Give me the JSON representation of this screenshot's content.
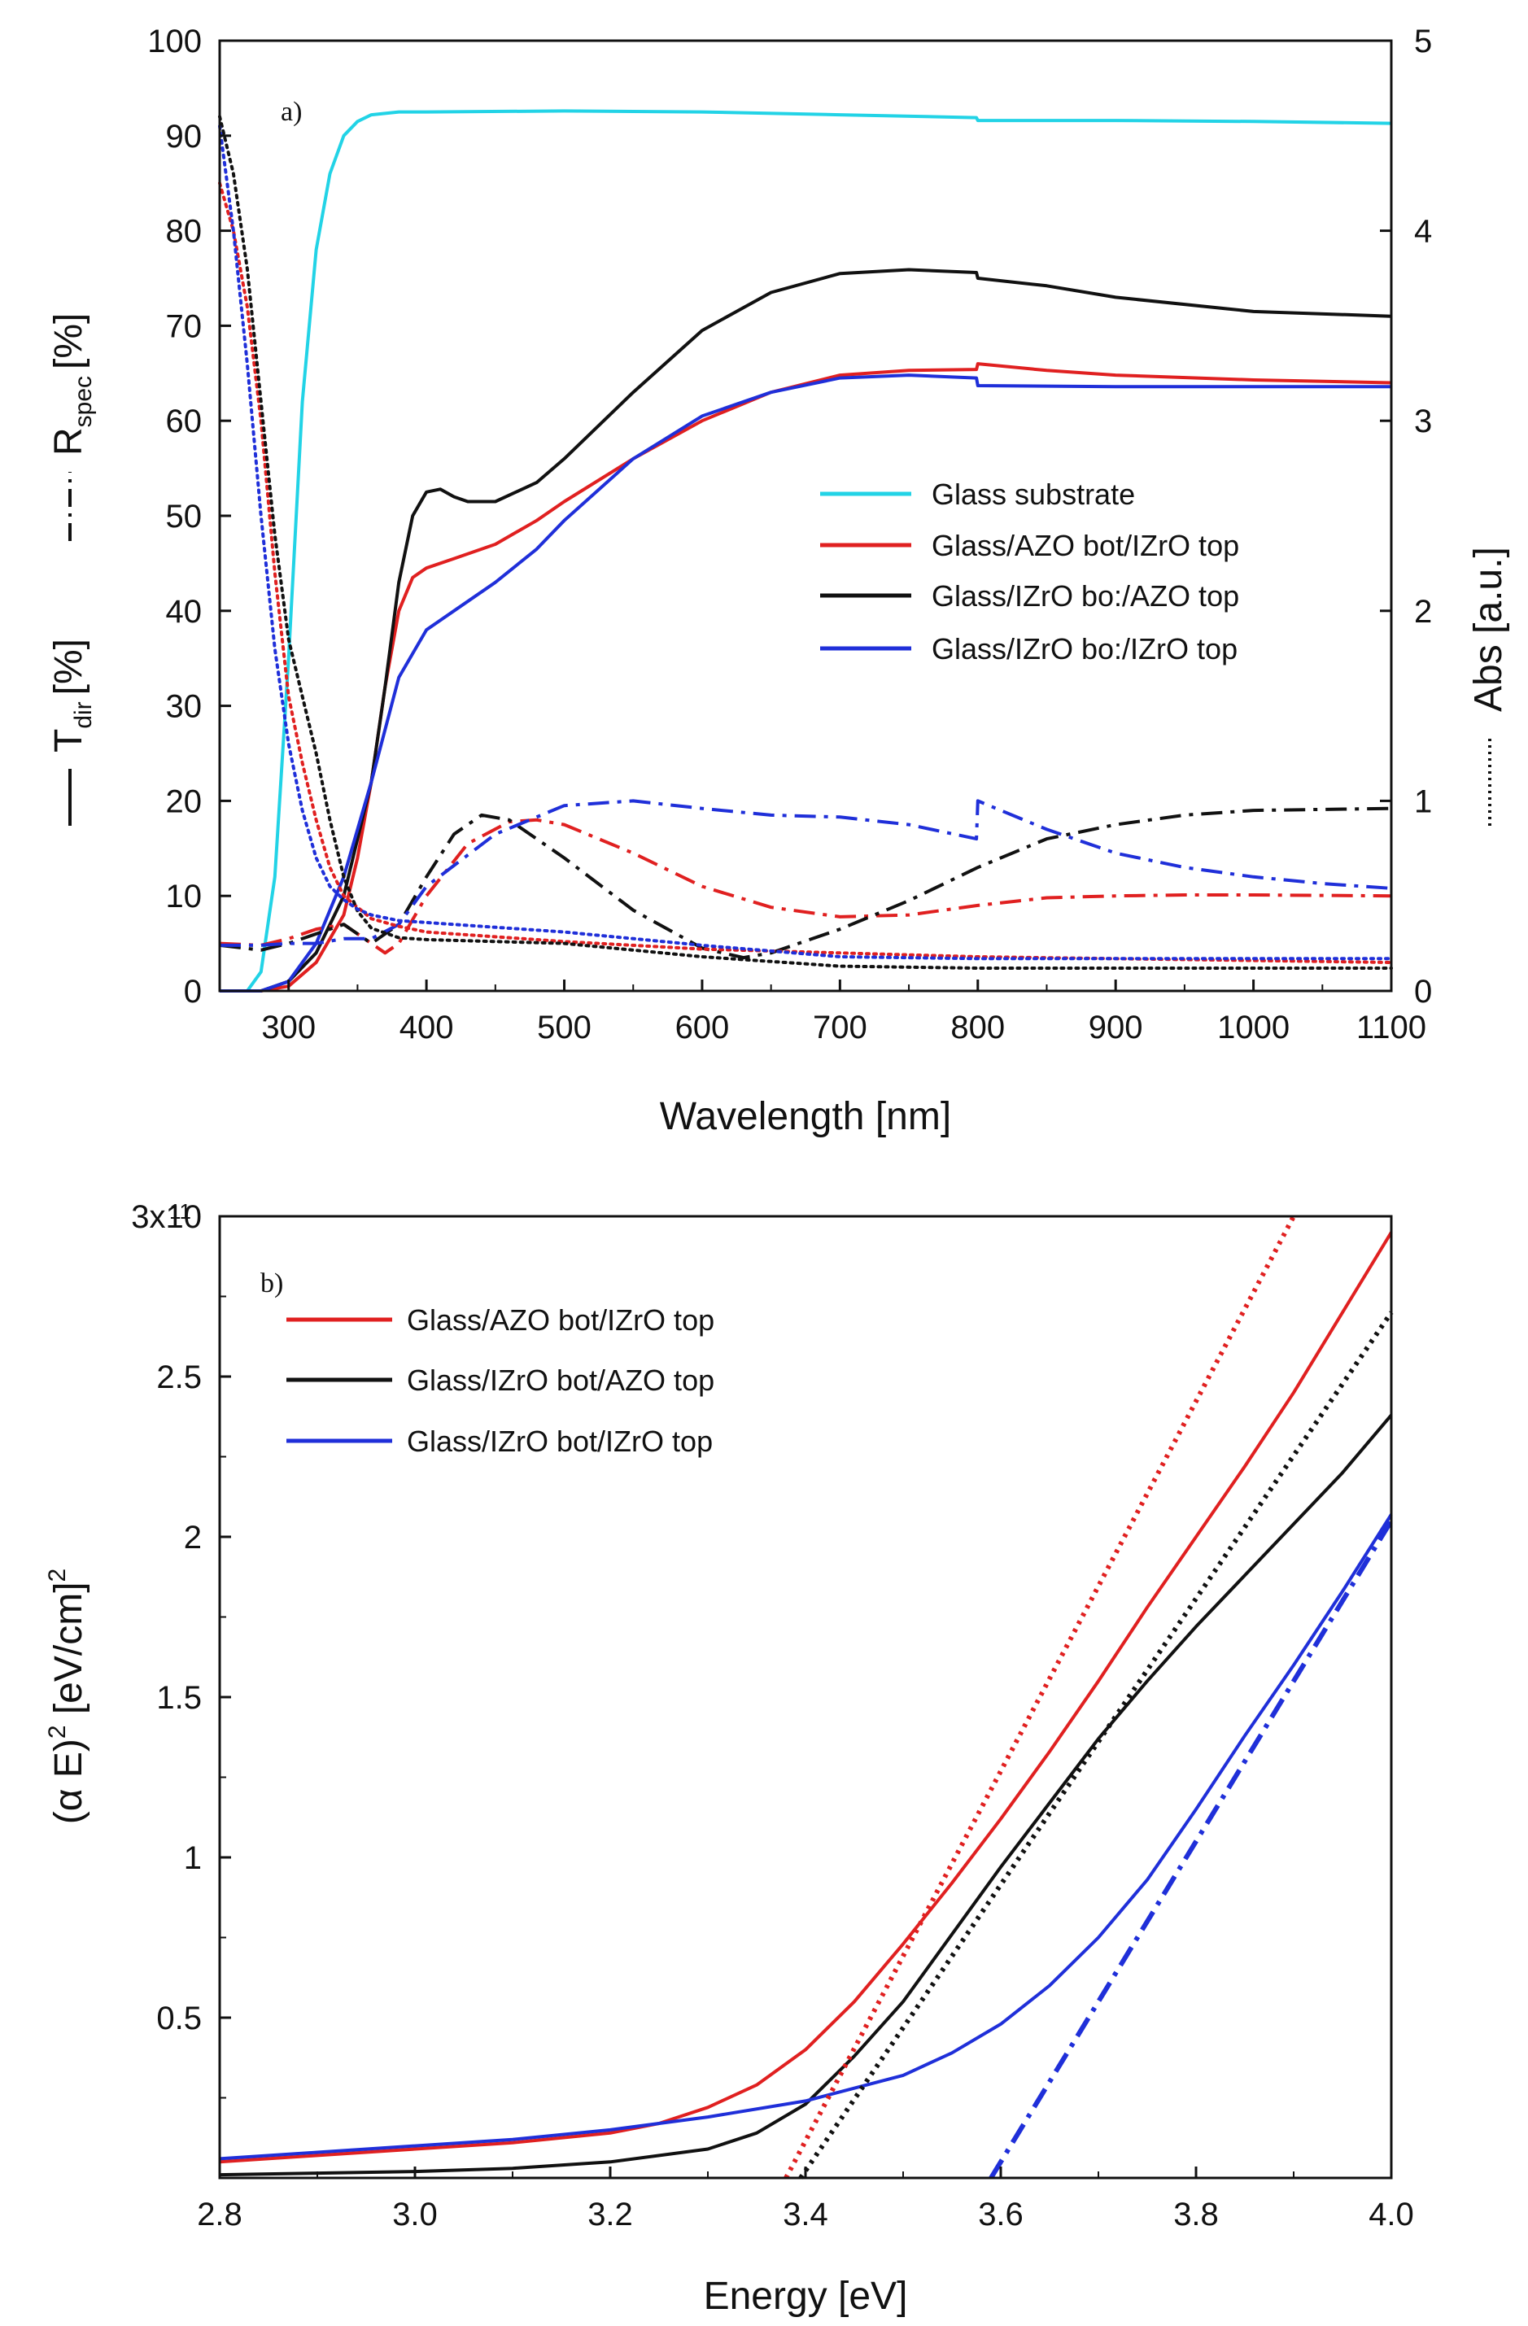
{
  "chart_data": [
    {
      "type": "line",
      "panel_label": "a)",
      "xlabel": "Wavelength [nm]",
      "ylabel_left": {
        "t_symbol": "T",
        "t_sub": "dir",
        "t_unit": "[%]",
        "r_symbol": "R",
        "r_sub": "spec",
        "r_unit": "[%]"
      },
      "ylabel_right": "Abs [a.u.]",
      "xlim": [
        250,
        1100
      ],
      "ylim_left": [
        0,
        100
      ],
      "ylim_right": [
        0,
        5
      ],
      "xticks": [
        300,
        400,
        500,
        600,
        700,
        800,
        900,
        1000,
        1100
      ],
      "yticks_left": [
        0,
        10,
        20,
        30,
        40,
        50,
        60,
        70,
        80,
        90,
        100
      ],
      "yticks_right": [
        0,
        1,
        2,
        3,
        4,
        5
      ],
      "legend_position": "center-right",
      "legend": [
        "Glass substrate",
        "Glass/AZO bot/IZrO top",
        "Glass/IZrO bo:/AZO top",
        "Glass/IZrO bo:/IZrO top"
      ],
      "series": [
        {
          "name": "Glass substrate",
          "quantity": "T_dir",
          "style": "solid",
          "color": "#22d3e6",
          "x": [
            250,
            270,
            280,
            290,
            300,
            310,
            320,
            330,
            340,
            350,
            360,
            380,
            400,
            500,
            600,
            700,
            799,
            800,
            900,
            1000,
            1100
          ],
          "y": [
            0,
            0,
            2,
            12,
            35,
            62,
            78,
            86,
            90,
            91.5,
            92.2,
            92.5,
            92.5,
            92.6,
            92.5,
            92.2,
            91.9,
            91.6,
            91.6,
            91.5,
            91.3
          ]
        },
        {
          "name": "Glass/AZO bot/IZrO top",
          "quantity": "T_dir",
          "style": "solid",
          "color": "#e02020",
          "x": [
            250,
            280,
            300,
            320,
            340,
            350,
            360,
            370,
            380,
            390,
            400,
            420,
            450,
            480,
            500,
            550,
            600,
            650,
            700,
            750,
            799,
            800,
            850,
            900,
            1000,
            1100
          ],
          "y": [
            0,
            0,
            0.5,
            3,
            8,
            14,
            22,
            32,
            40,
            43.5,
            44.5,
            45.5,
            47,
            49.5,
            51.5,
            56,
            60,
            63,
            64.8,
            65.3,
            65.4,
            66,
            65.3,
            64.8,
            64.3,
            64
          ]
        },
        {
          "name": "Glass/IZrO bo:/AZO top",
          "quantity": "T_dir",
          "style": "solid",
          "color": "#111111",
          "x": [
            250,
            280,
            300,
            320,
            340,
            360,
            370,
            380,
            390,
            400,
            410,
            420,
            430,
            450,
            480,
            500,
            550,
            600,
            650,
            700,
            750,
            799,
            800,
            850,
            900,
            1000,
            1100
          ],
          "y": [
            0,
            0,
            1,
            4,
            10,
            22,
            32,
            43,
            50,
            52.5,
            52.8,
            52,
            51.5,
            51.5,
            53.5,
            56,
            63,
            69.5,
            73.5,
            75.5,
            75.9,
            75.6,
            75,
            74.2,
            73,
            71.5,
            71
          ]
        },
        {
          "name": "Glass/IZrO bo:/IZrO top",
          "quantity": "T_dir",
          "style": "solid",
          "color": "#1f2fd9",
          "x": [
            250,
            280,
            300,
            320,
            340,
            360,
            380,
            400,
            420,
            450,
            480,
            500,
            550,
            600,
            650,
            700,
            750,
            799,
            800,
            900,
            1000,
            1100
          ],
          "y": [
            0,
            0,
            1,
            5,
            12,
            22,
            33,
            38,
            40,
            43,
            46.5,
            49.5,
            56,
            60.5,
            63,
            64.5,
            64.8,
            64.5,
            63.7,
            63.6,
            63.6,
            63.6
          ]
        },
        {
          "name": "Glass/AZO bot/IZrO top",
          "quantity": "R_spec",
          "style": "dashdot",
          "color": "#e02020",
          "x": [
            250,
            280,
            300,
            320,
            340,
            360,
            370,
            380,
            400,
            430,
            460,
            480,
            500,
            550,
            600,
            650,
            700,
            750,
            800,
            850,
            900,
            950,
            1000,
            1100
          ],
          "y": [
            5,
            4.8,
            5.5,
            6.5,
            7,
            5,
            4,
            5,
            10,
            15.5,
            17.8,
            18,
            17.5,
            14.5,
            11,
            8.8,
            7.8,
            8,
            9,
            9.8,
            10,
            10.1,
            10.1,
            10
          ]
        },
        {
          "name": "Glass/IZrO bo:/AZO top",
          "quantity": "R_spec",
          "style": "dashdot",
          "color": "#111111",
          "x": [
            250,
            280,
            300,
            320,
            340,
            360,
            380,
            400,
            420,
            440,
            460,
            500,
            550,
            600,
            630,
            650,
            700,
            750,
            800,
            850,
            900,
            950,
            1000,
            1100
          ],
          "y": [
            4.8,
            4.3,
            5,
            6,
            7,
            5,
            7,
            12,
            16.5,
            18.5,
            18,
            14,
            8.5,
            4.5,
            3.5,
            4,
            6.5,
            9.5,
            13,
            16,
            17.5,
            18.5,
            19,
            19.2
          ]
        },
        {
          "name": "Glass/IZrO bo:/IZrO top",
          "quantity": "R_spec",
          "style": "dashdot",
          "color": "#1f2fd9",
          "x": [
            250,
            280,
            300,
            320,
            340,
            360,
            380,
            400,
            450,
            500,
            550,
            600,
            650,
            700,
            750,
            799,
            800,
            850,
            900,
            950,
            1000,
            1050,
            1100
          ],
          "y": [
            4.8,
            4.8,
            5,
            5,
            5.5,
            5.5,
            7,
            11,
            16.5,
            19.5,
            20,
            19.2,
            18.5,
            18.3,
            17.5,
            16,
            20,
            17,
            14.5,
            13,
            12,
            11.3,
            10.8
          ]
        },
        {
          "name": "Glass/AZO bot/IZrO top",
          "quantity": "Abs",
          "style": "dotted",
          "color": "#e02020",
          "axis": "right",
          "x": [
            250,
            260,
            270,
            280,
            290,
            300,
            310,
            320,
            330,
            340,
            350,
            360,
            380,
            400,
            500,
            600,
            700,
            800,
            900,
            1000,
            1100
          ],
          "y": [
            4.25,
            4.0,
            3.6,
            3.0,
            2.2,
            1.55,
            1.2,
            0.9,
            0.65,
            0.5,
            0.44,
            0.38,
            0.34,
            0.31,
            0.26,
            0.22,
            0.2,
            0.18,
            0.17,
            0.16,
            0.15
          ]
        },
        {
          "name": "Glass/IZrO bo:/AZO top",
          "quantity": "Abs",
          "style": "dotted",
          "color": "#111111",
          "axis": "right",
          "x": [
            250,
            260,
            270,
            280,
            290,
            300,
            310,
            320,
            330,
            340,
            350,
            360,
            380,
            400,
            500,
            600,
            700,
            800,
            900,
            1000,
            1100
          ],
          "y": [
            4.6,
            4.3,
            3.8,
            3.1,
            2.4,
            1.85,
            1.55,
            1.25,
            0.9,
            0.6,
            0.42,
            0.33,
            0.28,
            0.27,
            0.25,
            0.18,
            0.13,
            0.12,
            0.12,
            0.12,
            0.12
          ]
        },
        {
          "name": "Glass/IZrO bo:/IZrO top",
          "quantity": "Abs",
          "style": "dotted",
          "color": "#1f2fd9",
          "axis": "right",
          "x": [
            250,
            260,
            270,
            280,
            290,
            300,
            310,
            320,
            330,
            340,
            350,
            360,
            380,
            400,
            500,
            600,
            700,
            800,
            900,
            1000,
            1100
          ],
          "y": [
            4.55,
            4.0,
            3.3,
            2.5,
            1.8,
            1.3,
            0.95,
            0.7,
            0.55,
            0.48,
            0.43,
            0.4,
            0.37,
            0.36,
            0.31,
            0.24,
            0.18,
            0.17,
            0.17,
            0.17,
            0.17
          ]
        }
      ]
    },
    {
      "type": "line",
      "panel_label": "b)",
      "xlabel": "Energy [eV]",
      "ylabel": {
        "left": "(α E)",
        "sup1": "2",
        "mid": " [eV/cm]",
        "sup2": "2"
      },
      "xlim": [
        2.8,
        4.0
      ],
      "ylim": [
        0,
        300000000000.0
      ],
      "xticks": [
        "2.8",
        "3.0",
        "3.2",
        "3.4",
        "3.6",
        "3.8",
        "4.0"
      ],
      "yticks": [
        {
          "value": 0.5,
          "label": "0.5"
        },
        {
          "value": 1,
          "label": "1"
        },
        {
          "value": 1.5,
          "label": "1.5"
        },
        {
          "value": 2,
          "label": "2"
        },
        {
          "value": 2.5,
          "label": "2.5"
        },
        {
          "value": 3,
          "label": "3x10"
        }
      ],
      "ytick_top_exponent": "11",
      "y_units": "1e11",
      "legend_position": "top-left",
      "legend": [
        "Glass/AZO bot/IZrO top",
        "Glass/IZrO bot/AZO top",
        "Glass/IZrO bot/IZrO top"
      ],
      "series": [
        {
          "name": "Glass/AZO bot/IZrO top",
          "style": "solid",
          "color": "#e02020",
          "x": [
            2.8,
            2.9,
            3.0,
            3.1,
            3.2,
            3.25,
            3.3,
            3.35,
            3.4,
            3.45,
            3.5,
            3.55,
            3.6,
            3.65,
            3.7,
            3.75,
            3.8,
            3.85,
            3.9,
            3.95,
            4.0
          ],
          "y": [
            0.05,
            0.07,
            0.09,
            0.11,
            0.14,
            0.17,
            0.22,
            0.29,
            0.4,
            0.55,
            0.73,
            0.92,
            1.12,
            1.33,
            1.55,
            1.78,
            2.0,
            2.22,
            2.45,
            2.7,
            2.95
          ]
        },
        {
          "name": "Glass/IZrO bot/AZO top",
          "style": "solid",
          "color": "#111111",
          "x": [
            2.8,
            2.9,
            3.0,
            3.1,
            3.2,
            3.3,
            3.35,
            3.4,
            3.45,
            3.5,
            3.55,
            3.6,
            3.65,
            3.7,
            3.75,
            3.8,
            3.85,
            3.9,
            3.95,
            4.0
          ],
          "y": [
            0.01,
            0.015,
            0.02,
            0.03,
            0.05,
            0.09,
            0.14,
            0.23,
            0.38,
            0.55,
            0.76,
            0.97,
            1.17,
            1.37,
            1.55,
            1.72,
            1.88,
            2.04,
            2.2,
            2.38
          ]
        },
        {
          "name": "Glass/IZrO bot/IZrO top",
          "style": "solid",
          "color": "#1f2fd9",
          "x": [
            2.8,
            2.9,
            3.0,
            3.1,
            3.2,
            3.3,
            3.4,
            3.5,
            3.55,
            3.6,
            3.65,
            3.7,
            3.75,
            3.8,
            3.85,
            3.9,
            3.95,
            4.0
          ],
          "y": [
            0.06,
            0.08,
            0.1,
            0.12,
            0.15,
            0.19,
            0.24,
            0.32,
            0.39,
            0.48,
            0.6,
            0.75,
            0.93,
            1.15,
            1.38,
            1.6,
            1.83,
            2.07
          ]
        },
        {
          "name": "Glass/AZO bot/IZrO top fit",
          "style": "dotted",
          "color": "#e02020",
          "x": [
            3.38,
            3.9
          ],
          "y": [
            0,
            3.0
          ]
        },
        {
          "name": "Glass/IZrO bot/AZO top fit",
          "style": "dotted",
          "color": "#111111",
          "x": [
            3.395,
            4.0
          ],
          "y": [
            0,
            2.7
          ]
        },
        {
          "name": "Glass/IZrO bot/IZrO top fit",
          "style": "dashdot",
          "color": "#1f2fd9",
          "x": [
            3.59,
            4.0
          ],
          "y": [
            0,
            2.05
          ]
        }
      ]
    }
  ]
}
